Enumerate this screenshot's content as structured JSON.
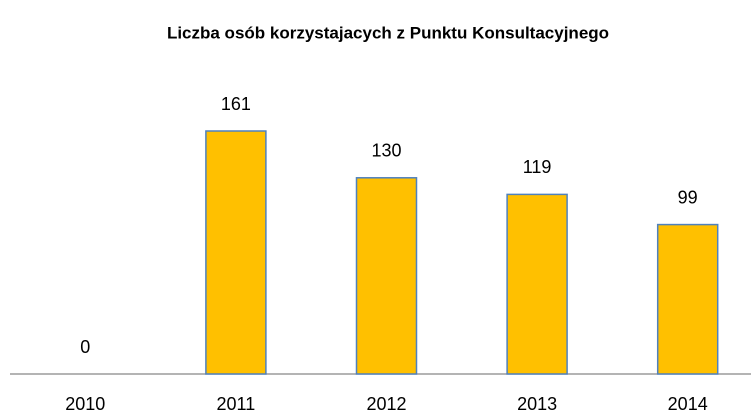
{
  "chart_data": {
    "type": "bar",
    "title": "Liczba osób korzystajacych z Punktu Konsultacyjnego",
    "categories": [
      "2010",
      "2011",
      "2012",
      "2013",
      "2014"
    ],
    "values": [
      0,
      161,
      130,
      119,
      99
    ],
    "color": "#ffc000"
  }
}
